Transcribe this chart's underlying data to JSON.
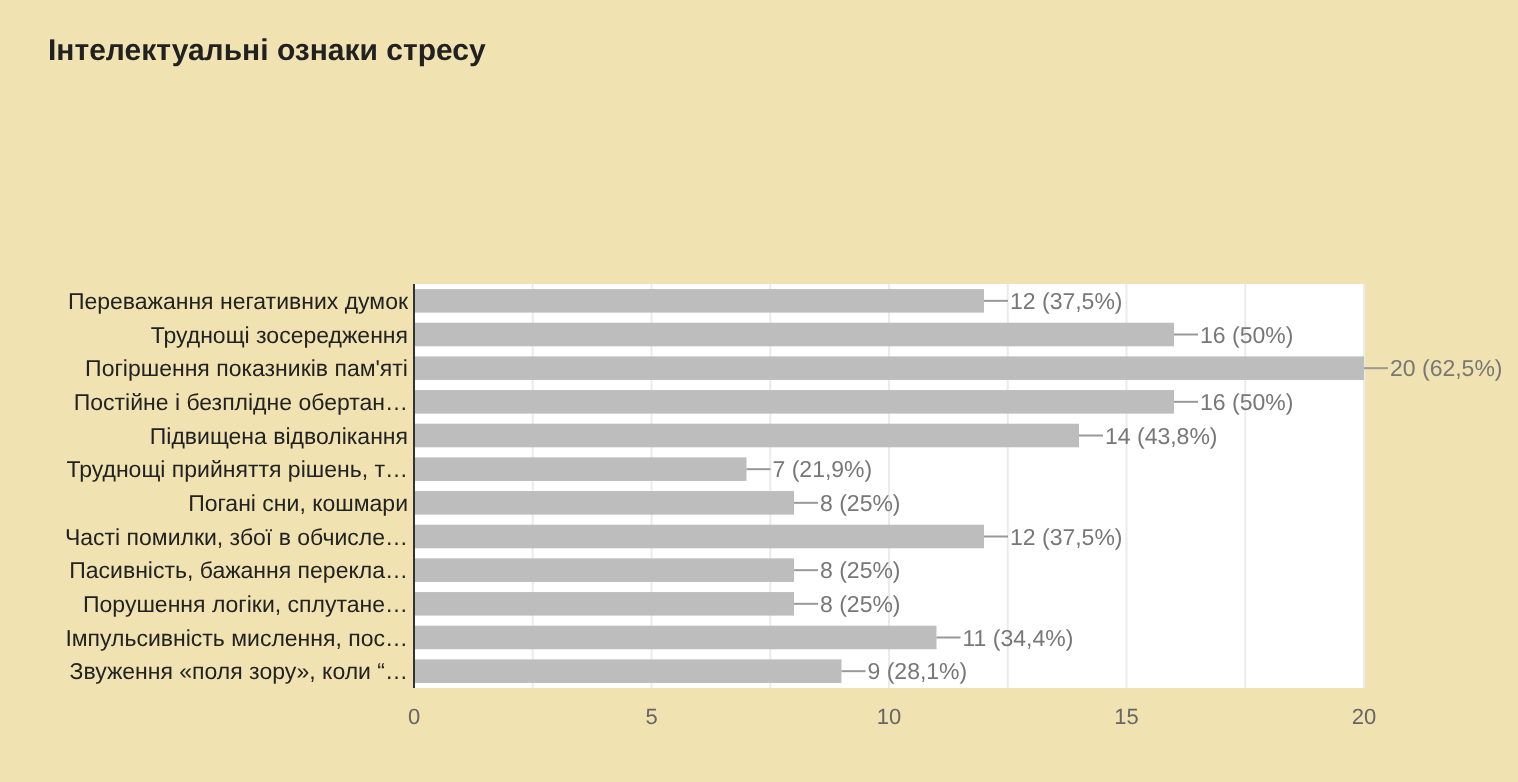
{
  "chart_data": {
    "type": "bar",
    "orientation": "horizontal",
    "title": "Інтелектуальні ознаки стресу",
    "categories": [
      "Переважання негативних думок",
      "Труднощі зосередження",
      "Погіршення показників пам'яті",
      "Постійне і безплідне обертан…",
      "Підвищена відволікання",
      "Труднощі прийняття рішень, т…",
      "Погані сни, кошмари",
      "Часті помилки, збої в обчисле…",
      "Пасивність, бажання перекла…",
      "Порушення логіки, сплутане…",
      "Імпульсивність мислення, пос…",
      "Звуження «поля зору», коли “…"
    ],
    "values": [
      12,
      16,
      20,
      16,
      14,
      7,
      8,
      12,
      8,
      8,
      11,
      9
    ],
    "value_labels": [
      "12 (37,5%)",
      "16 (50%)",
      "20 (62,5%)",
      "16 (50%)",
      "14 (43,8%)",
      "7 (21,9%)",
      "8 (25%)",
      "12 (37,5%)",
      "8 (25%)",
      "8 (25%)",
      "11 (34,4%)",
      "9 (28,1%)"
    ],
    "color": "#bdbdbd",
    "xlim": [
      0,
      20
    ],
    "xticks": [
      0,
      {
        "value": 2.5,
        "label": null
      },
      5,
      {
        "value": 7.5,
        "label": null
      },
      10,
      {
        "value": 12.5,
        "label": null
      },
      15,
      {
        "value": 17.5,
        "label": null
      },
      20
    ],
    "grid": "x"
  }
}
